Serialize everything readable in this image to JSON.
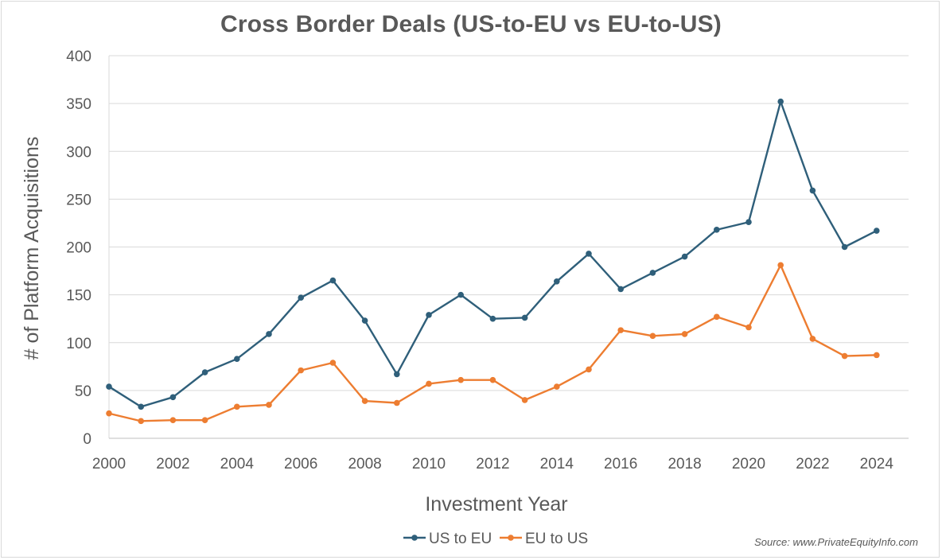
{
  "chart_data": {
    "type": "line",
    "title": "Cross Border Deals (US-to-EU vs EU-to-US)",
    "xlabel": "Investment Year",
    "ylabel": "# of Platform Acquisitions",
    "x": [
      2000,
      2001,
      2002,
      2003,
      2004,
      2005,
      2006,
      2007,
      2008,
      2009,
      2010,
      2011,
      2012,
      2013,
      2014,
      2015,
      2016,
      2017,
      2018,
      2019,
      2020,
      2021,
      2022,
      2023,
      2024
    ],
    "xticks": [
      "2000",
      "2002",
      "2004",
      "2006",
      "2008",
      "2010",
      "2012",
      "2014",
      "2016",
      "2018",
      "2020",
      "2022",
      "2024"
    ],
    "yticks": [
      "0",
      "50",
      "100",
      "150",
      "200",
      "250",
      "300",
      "350",
      "400"
    ],
    "ylim": [
      0,
      400
    ],
    "xlim": [
      2000,
      2025
    ],
    "grid": true,
    "legend_position": "bottom",
    "series": [
      {
        "name": "US to EU",
        "color": "#2f5f7a",
        "values": [
          54,
          33,
          43,
          69,
          83,
          109,
          147,
          165,
          123,
          67,
          129,
          150,
          125,
          126,
          164,
          193,
          156,
          173,
          190,
          218,
          226,
          352,
          259,
          200,
          217
        ]
      },
      {
        "name": "EU to US",
        "color": "#ed7d31",
        "values": [
          26,
          18,
          19,
          19,
          33,
          35,
          71,
          79,
          39,
          37,
          57,
          61,
          61,
          40,
          54,
          72,
          113,
          107,
          109,
          127,
          116,
          181,
          104,
          86,
          87
        ]
      }
    ],
    "source": "Source: www.PrivateEquityInfo.com"
  }
}
